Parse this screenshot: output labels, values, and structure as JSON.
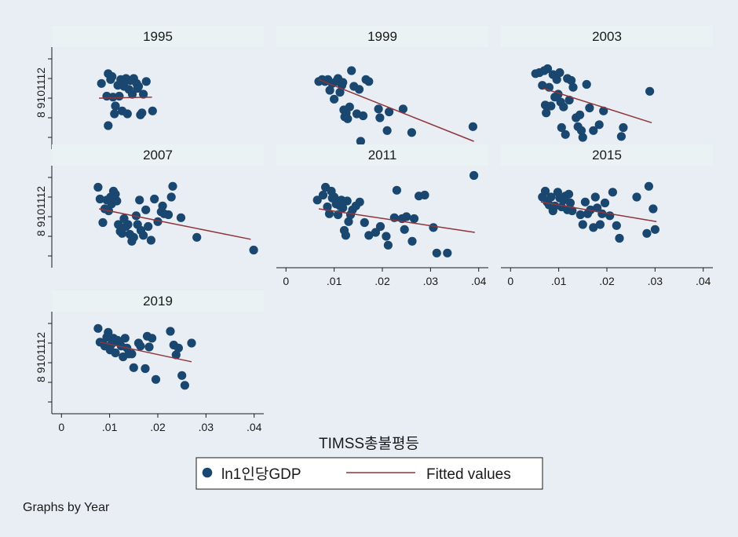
{
  "chart_data": {
    "type": "scatter",
    "x_title": "TIMSS총불평등",
    "x_ticks": [
      {
        "value": 0,
        "label": "0"
      },
      {
        "value": 0.01,
        "label": ".01"
      },
      {
        "value": 0.02,
        "label": ".02"
      },
      {
        "value": 0.03,
        "label": ".03"
      },
      {
        "value": 0.04,
        "label": ".04"
      }
    ],
    "y_tick_labels_text": "8 9101112",
    "xlim": [
      -0.002,
      0.042
    ],
    "ylim": [
      7.4,
      12.6
    ],
    "grid": false,
    "legend": {
      "position": "bottom",
      "entries": [
        {
          "label": "ln1인당GDP",
          "kind": "marker",
          "color": "#1a476f"
        },
        {
          "label": "Fitted values",
          "kind": "line",
          "color": "#90353b"
        }
      ]
    },
    "note": "Graphs by Year",
    "colors": {
      "marker": "#1a476f",
      "fit_line": "#90353b",
      "strip": "#eaf2f3",
      "background": "#e8eef4"
    },
    "panels": [
      {
        "year": "1995",
        "fit": {
          "x": [
            0.0078,
            0.0188
          ],
          "y": [
            10.0,
            10.05
          ]
        },
        "points": [
          [
            0.0083,
            10.75
          ],
          [
            0.0094,
            10.1
          ],
          [
            0.0097,
            11.25
          ],
          [
            0.0102,
            10.95
          ],
          [
            0.0107,
            10.05
          ],
          [
            0.011,
            9.2
          ],
          [
            0.0112,
            9.6
          ],
          [
            0.0117,
            10.65
          ],
          [
            0.012,
            10.1
          ],
          [
            0.0123,
            10.95
          ],
          [
            0.0126,
            9.35
          ],
          [
            0.013,
            10.6
          ],
          [
            0.0134,
            11.0
          ],
          [
            0.0137,
            9.2
          ],
          [
            0.014,
            10.45
          ],
          [
            0.0143,
            10.9
          ],
          [
            0.0147,
            10.2
          ],
          [
            0.015,
            11.0
          ],
          [
            0.0156,
            10.75
          ],
          [
            0.016,
            10.6
          ],
          [
            0.0164,
            9.15
          ],
          [
            0.0167,
            9.25
          ],
          [
            0.017,
            10.2
          ],
          [
            0.0176,
            10.85
          ],
          [
            0.0158,
            10.5
          ],
          [
            0.0189,
            9.35
          ],
          [
            0.0097,
            8.6
          ],
          [
            0.0105,
            11.1
          ]
        ]
      },
      {
        "year": "1999",
        "fit": {
          "x": [
            0.0068,
            0.039
          ],
          "y": [
            10.95,
            7.8
          ]
        },
        "points": [
          [
            0.0068,
            10.85
          ],
          [
            0.0075,
            10.95
          ],
          [
            0.0081,
            10.85
          ],
          [
            0.0087,
            10.95
          ],
          [
            0.0091,
            10.4
          ],
          [
            0.0096,
            10.75
          ],
          [
            0.01,
            9.95
          ],
          [
            0.0104,
            10.85
          ],
          [
            0.0108,
            11.0
          ],
          [
            0.0112,
            10.3
          ],
          [
            0.0116,
            10.65
          ],
          [
            0.0118,
            10.8
          ],
          [
            0.012,
            9.4
          ],
          [
            0.0122,
            9.05
          ],
          [
            0.0125,
            9.25
          ],
          [
            0.0128,
            8.95
          ],
          [
            0.0132,
            9.55
          ],
          [
            0.0136,
            11.4
          ],
          [
            0.0141,
            10.6
          ],
          [
            0.0147,
            9.2
          ],
          [
            0.0152,
            10.45
          ],
          [
            0.0155,
            7.8
          ],
          [
            0.016,
            9.1
          ],
          [
            0.0166,
            10.95
          ],
          [
            0.0172,
            10.85
          ],
          [
            0.0192,
            9.45
          ],
          [
            0.0195,
            9.0
          ],
          [
            0.021,
            8.35
          ],
          [
            0.0214,
            9.3
          ],
          [
            0.0243,
            9.45
          ],
          [
            0.0261,
            8.25
          ],
          [
            0.0388,
            8.55
          ]
        ]
      },
      {
        "year": "2003",
        "fit": {
          "x": [
            0.0068,
            0.0293
          ],
          "y": [
            10.5,
            8.75
          ]
        },
        "points": [
          [
            0.0052,
            11.25
          ],
          [
            0.006,
            11.3
          ],
          [
            0.0066,
            10.65
          ],
          [
            0.007,
            11.4
          ],
          [
            0.0072,
            9.65
          ],
          [
            0.0074,
            9.25
          ],
          [
            0.0077,
            11.5
          ],
          [
            0.008,
            10.55
          ],
          [
            0.0084,
            9.6
          ],
          [
            0.0088,
            11.2
          ],
          [
            0.0092,
            10.05
          ],
          [
            0.0096,
            10.95
          ],
          [
            0.0099,
            10.2
          ],
          [
            0.0102,
            11.3
          ],
          [
            0.0104,
            9.8
          ],
          [
            0.0106,
            8.5
          ],
          [
            0.011,
            9.55
          ],
          [
            0.0114,
            8.15
          ],
          [
            0.0118,
            11.0
          ],
          [
            0.0122,
            9.9
          ],
          [
            0.0126,
            10.9
          ],
          [
            0.013,
            10.55
          ],
          [
            0.0136,
            9.0
          ],
          [
            0.014,
            8.55
          ],
          [
            0.0144,
            9.15
          ],
          [
            0.0147,
            8.35
          ],
          [
            0.015,
            8.0
          ],
          [
            0.0158,
            10.7
          ],
          [
            0.0164,
            9.5
          ],
          [
            0.0172,
            8.35
          ],
          [
            0.0184,
            8.65
          ],
          [
            0.0193,
            9.35
          ],
          [
            0.023,
            8.05
          ],
          [
            0.0234,
            8.5
          ],
          [
            0.0289,
            10.35
          ]
        ]
      },
      {
        "year": "2007",
        "fit": {
          "x": [
            0.0078,
            0.0393
          ],
          "y": [
            10.4,
            8.85
          ]
        },
        "points": [
          [
            0.0076,
            11.5
          ],
          [
            0.008,
            10.9
          ],
          [
            0.0086,
            9.7
          ],
          [
            0.009,
            10.4
          ],
          [
            0.0094,
            10.85
          ],
          [
            0.0098,
            10.3
          ],
          [
            0.0102,
            11.0
          ],
          [
            0.0104,
            10.65
          ],
          [
            0.0108,
            11.3
          ],
          [
            0.0112,
            11.15
          ],
          [
            0.0115,
            10.8
          ],
          [
            0.0118,
            9.6
          ],
          [
            0.0122,
            9.25
          ],
          [
            0.0126,
            9.15
          ],
          [
            0.013,
            9.9
          ],
          [
            0.0134,
            9.5
          ],
          [
            0.0138,
            9.6
          ],
          [
            0.0142,
            9.1
          ],
          [
            0.0146,
            8.75
          ],
          [
            0.015,
            8.95
          ],
          [
            0.0155,
            10.05
          ],
          [
            0.0158,
            9.6
          ],
          [
            0.0162,
            10.85
          ],
          [
            0.0165,
            9.3
          ],
          [
            0.017,
            9.05
          ],
          [
            0.0175,
            10.35
          ],
          [
            0.018,
            9.5
          ],
          [
            0.0186,
            8.8
          ],
          [
            0.0193,
            10.9
          ],
          [
            0.02,
            9.75
          ],
          [
            0.0207,
            10.25
          ],
          [
            0.021,
            10.55
          ],
          [
            0.0213,
            10.15
          ],
          [
            0.0222,
            10.1
          ],
          [
            0.0228,
            11.0
          ],
          [
            0.0231,
            11.55
          ],
          [
            0.0248,
            9.95
          ],
          [
            0.0281,
            8.95
          ],
          [
            0.0399,
            8.3
          ]
        ]
      },
      {
        "year": "2011",
        "fit": {
          "x": [
            0.0068,
            0.0392
          ],
          "y": [
            10.4,
            9.2
          ]
        },
        "points": [
          [
            0.0065,
            10.85
          ],
          [
            0.0077,
            11.1
          ],
          [
            0.0082,
            11.5
          ],
          [
            0.0086,
            10.5
          ],
          [
            0.009,
            10.15
          ],
          [
            0.0094,
            11.3
          ],
          [
            0.0096,
            10.95
          ],
          [
            0.01,
            11.0
          ],
          [
            0.0104,
            10.65
          ],
          [
            0.0108,
            10.1
          ],
          [
            0.0112,
            10.55
          ],
          [
            0.0115,
            10.85
          ],
          [
            0.0118,
            10.45
          ],
          [
            0.0121,
            9.3
          ],
          [
            0.0124,
            9.05
          ],
          [
            0.0127,
            10.8
          ],
          [
            0.013,
            9.75
          ],
          [
            0.0134,
            10.1
          ],
          [
            0.0138,
            10.35
          ],
          [
            0.0145,
            10.55
          ],
          [
            0.0153,
            10.75
          ],
          [
            0.0163,
            9.7
          ],
          [
            0.0172,
            9.05
          ],
          [
            0.0186,
            9.2
          ],
          [
            0.0196,
            9.5
          ],
          [
            0.0208,
            9.0
          ],
          [
            0.0212,
            8.55
          ],
          [
            0.0225,
            9.95
          ],
          [
            0.023,
            11.35
          ],
          [
            0.0241,
            9.9
          ],
          [
            0.0246,
            9.35
          ],
          [
            0.025,
            10.0
          ],
          [
            0.0262,
            8.75
          ],
          [
            0.0266,
            9.9
          ],
          [
            0.0276,
            11.05
          ],
          [
            0.0288,
            11.1
          ],
          [
            0.0306,
            9.45
          ],
          [
            0.0313,
            8.15
          ],
          [
            0.0335,
            8.15
          ],
          [
            0.039,
            12.1
          ]
        ]
      },
      {
        "year": "2015",
        "fit": {
          "x": [
            0.0063,
            0.0303
          ],
          "y": [
            10.75,
            9.75
          ]
        },
        "points": [
          [
            0.0066,
            11.0
          ],
          [
            0.0072,
            11.3
          ],
          [
            0.0076,
            10.75
          ],
          [
            0.008,
            10.6
          ],
          [
            0.0084,
            11.0
          ],
          [
            0.0088,
            10.3
          ],
          [
            0.0092,
            10.55
          ],
          [
            0.0098,
            11.25
          ],
          [
            0.0102,
            10.95
          ],
          [
            0.0106,
            10.5
          ],
          [
            0.011,
            10.85
          ],
          [
            0.0114,
            11.05
          ],
          [
            0.0118,
            10.35
          ],
          [
            0.0121,
            11.15
          ],
          [
            0.0124,
            10.7
          ],
          [
            0.0128,
            10.3
          ],
          [
            0.0145,
            10.1
          ],
          [
            0.015,
            9.6
          ],
          [
            0.0155,
            10.75
          ],
          [
            0.016,
            10.15
          ],
          [
            0.0166,
            10.35
          ],
          [
            0.0172,
            9.45
          ],
          [
            0.0176,
            11.0
          ],
          [
            0.018,
            10.45
          ],
          [
            0.0186,
            9.6
          ],
          [
            0.019,
            10.15
          ],
          [
            0.0196,
            10.7
          ],
          [
            0.0206,
            10.05
          ],
          [
            0.0212,
            11.25
          ],
          [
            0.022,
            9.55
          ],
          [
            0.0226,
            8.9
          ],
          [
            0.0262,
            11.0
          ],
          [
            0.0283,
            9.15
          ],
          [
            0.0287,
            11.55
          ],
          [
            0.0296,
            10.4
          ],
          [
            0.03,
            9.35
          ]
        ]
      },
      {
        "year": "2019",
        "fit": {
          "x": [
            0.008,
            0.027
          ],
          "y": [
            11.05,
            10.05
          ]
        },
        "points": [
          [
            0.0076,
            11.75
          ],
          [
            0.008,
            11.05
          ],
          [
            0.0086,
            11.0
          ],
          [
            0.009,
            10.85
          ],
          [
            0.0094,
            11.3
          ],
          [
            0.0097,
            11.55
          ],
          [
            0.0101,
            10.65
          ],
          [
            0.0104,
            10.95
          ],
          [
            0.0108,
            11.25
          ],
          [
            0.0112,
            10.5
          ],
          [
            0.0116,
            11.15
          ],
          [
            0.012,
            11.05
          ],
          [
            0.0124,
            10.85
          ],
          [
            0.0128,
            10.3
          ],
          [
            0.0132,
            11.25
          ],
          [
            0.0136,
            10.75
          ],
          [
            0.014,
            10.45
          ],
          [
            0.0146,
            10.45
          ],
          [
            0.015,
            9.75
          ],
          [
            0.016,
            11.0
          ],
          [
            0.0164,
            10.85
          ],
          [
            0.0174,
            9.7
          ],
          [
            0.0178,
            11.35
          ],
          [
            0.0182,
            10.8
          ],
          [
            0.0188,
            11.25
          ],
          [
            0.0196,
            9.15
          ],
          [
            0.0226,
            11.6
          ],
          [
            0.0233,
            10.9
          ],
          [
            0.0238,
            10.4
          ],
          [
            0.0243,
            10.75
          ],
          [
            0.025,
            9.35
          ],
          [
            0.0256,
            8.85
          ],
          [
            0.027,
            11.0
          ]
        ]
      }
    ]
  }
}
